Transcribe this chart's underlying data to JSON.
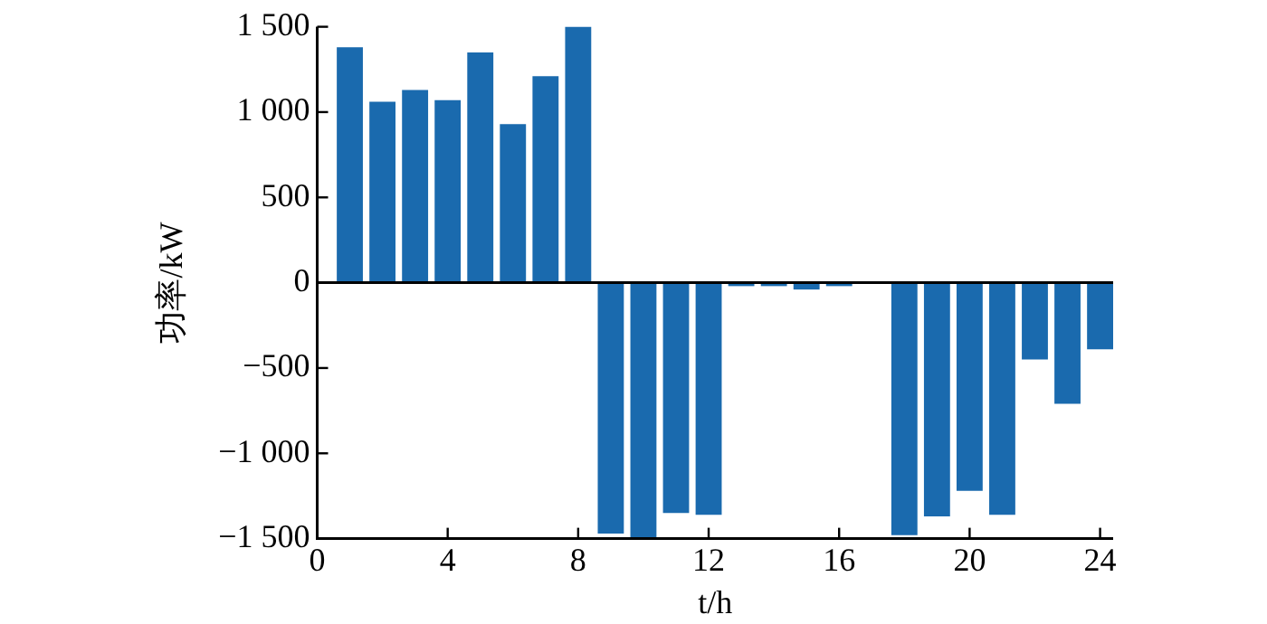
{
  "chart_data": {
    "type": "bar",
    "xlabel": "t/h",
    "ylabel": "功率/kW",
    "x": [
      1,
      2,
      3,
      4,
      5,
      6,
      7,
      8,
      9,
      10,
      11,
      12,
      13,
      14,
      15,
      16,
      17,
      18,
      19,
      20,
      21,
      22,
      23,
      24
    ],
    "series": [
      {
        "color": "#1a6aae",
        "values": [
          1380,
          1060,
          1130,
          1070,
          1350,
          930,
          1210,
          1500,
          -1470,
          -1500,
          -1350,
          -1360,
          -20,
          -20,
          -40,
          -20,
          0,
          -1480,
          -1370,
          -1220,
          -1360,
          -450,
          -710,
          -390
        ]
      }
    ],
    "xlim": [
      0,
      24.4
    ],
    "xticks": [
      0,
      4,
      8,
      12,
      16,
      20,
      24
    ],
    "ylim": [
      -1500,
      1500
    ],
    "yticks": [
      {
        "value": -1500,
        "label": "−1 500"
      },
      {
        "value": -1000,
        "label": "−1 000"
      },
      {
        "value": -500,
        "label": "−500"
      },
      0,
      500,
      {
        "value": 1000,
        "label": "1 000"
      },
      {
        "value": 1500,
        "label": "1 500"
      }
    ],
    "ref_lines": [
      {
        "axis": "y",
        "value": 0,
        "color": "#000000"
      }
    ],
    "grid": false,
    "legend": false
  }
}
